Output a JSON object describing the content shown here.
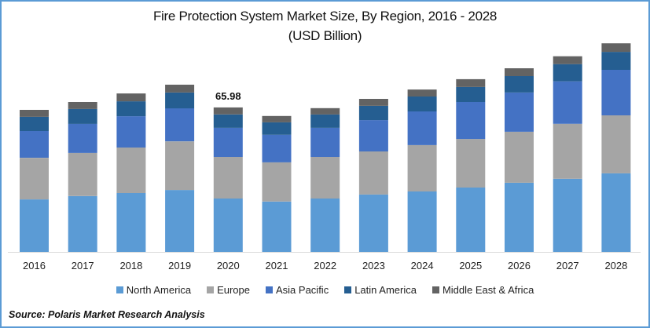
{
  "chart_data": {
    "type": "bar",
    "stacked": true,
    "title": "Fire Protection System Market Size, By Region, 2016 - 2028",
    "subtitle": "(USD Billion)",
    "xlabel": "",
    "ylabel": "",
    "ylim": [
      0,
      100
    ],
    "grid": false,
    "legend_position": "bottom",
    "categories": [
      "2016",
      "2017",
      "2018",
      "2019",
      "2020",
      "2021",
      "2022",
      "2023",
      "2024",
      "2025",
      "2026",
      "2027",
      "2028"
    ],
    "series": [
      {
        "name": "North America",
        "color": "#5b9bd5",
        "values": [
          24.0,
          25.5,
          26.9,
          28.3,
          24.4,
          23.0,
          24.4,
          26.2,
          27.6,
          29.4,
          31.6,
          33.4,
          35.9
        ]
      },
      {
        "name": "Europe",
        "color": "#a5a5a5",
        "values": [
          19.0,
          19.7,
          20.8,
          22.2,
          19.0,
          17.9,
          19.0,
          19.7,
          21.2,
          22.2,
          23.3,
          25.1,
          26.5
        ]
      },
      {
        "name": "Asia Pacific",
        "color": "#4472c4",
        "values": [
          12.2,
          13.3,
          14.3,
          15.1,
          13.3,
          12.6,
          13.3,
          14.3,
          15.4,
          16.9,
          17.9,
          19.4,
          20.8
        ]
      },
      {
        "name": "Latin America",
        "color": "#255e91",
        "values": [
          6.5,
          6.8,
          6.8,
          7.2,
          6.1,
          5.7,
          6.1,
          6.5,
          6.8,
          6.8,
          7.5,
          7.9,
          8.2
        ]
      },
      {
        "name": "Middle East & Africa",
        "color": "#636363",
        "values": [
          3.2,
          3.2,
          3.6,
          3.6,
          3.2,
          2.9,
          2.9,
          3.2,
          3.2,
          3.6,
          3.6,
          3.6,
          3.9
        ]
      }
    ],
    "annotations": [
      {
        "category": "2020",
        "text": "65.98"
      }
    ]
  },
  "source": "Source: Polaris  Market Research Analysis"
}
